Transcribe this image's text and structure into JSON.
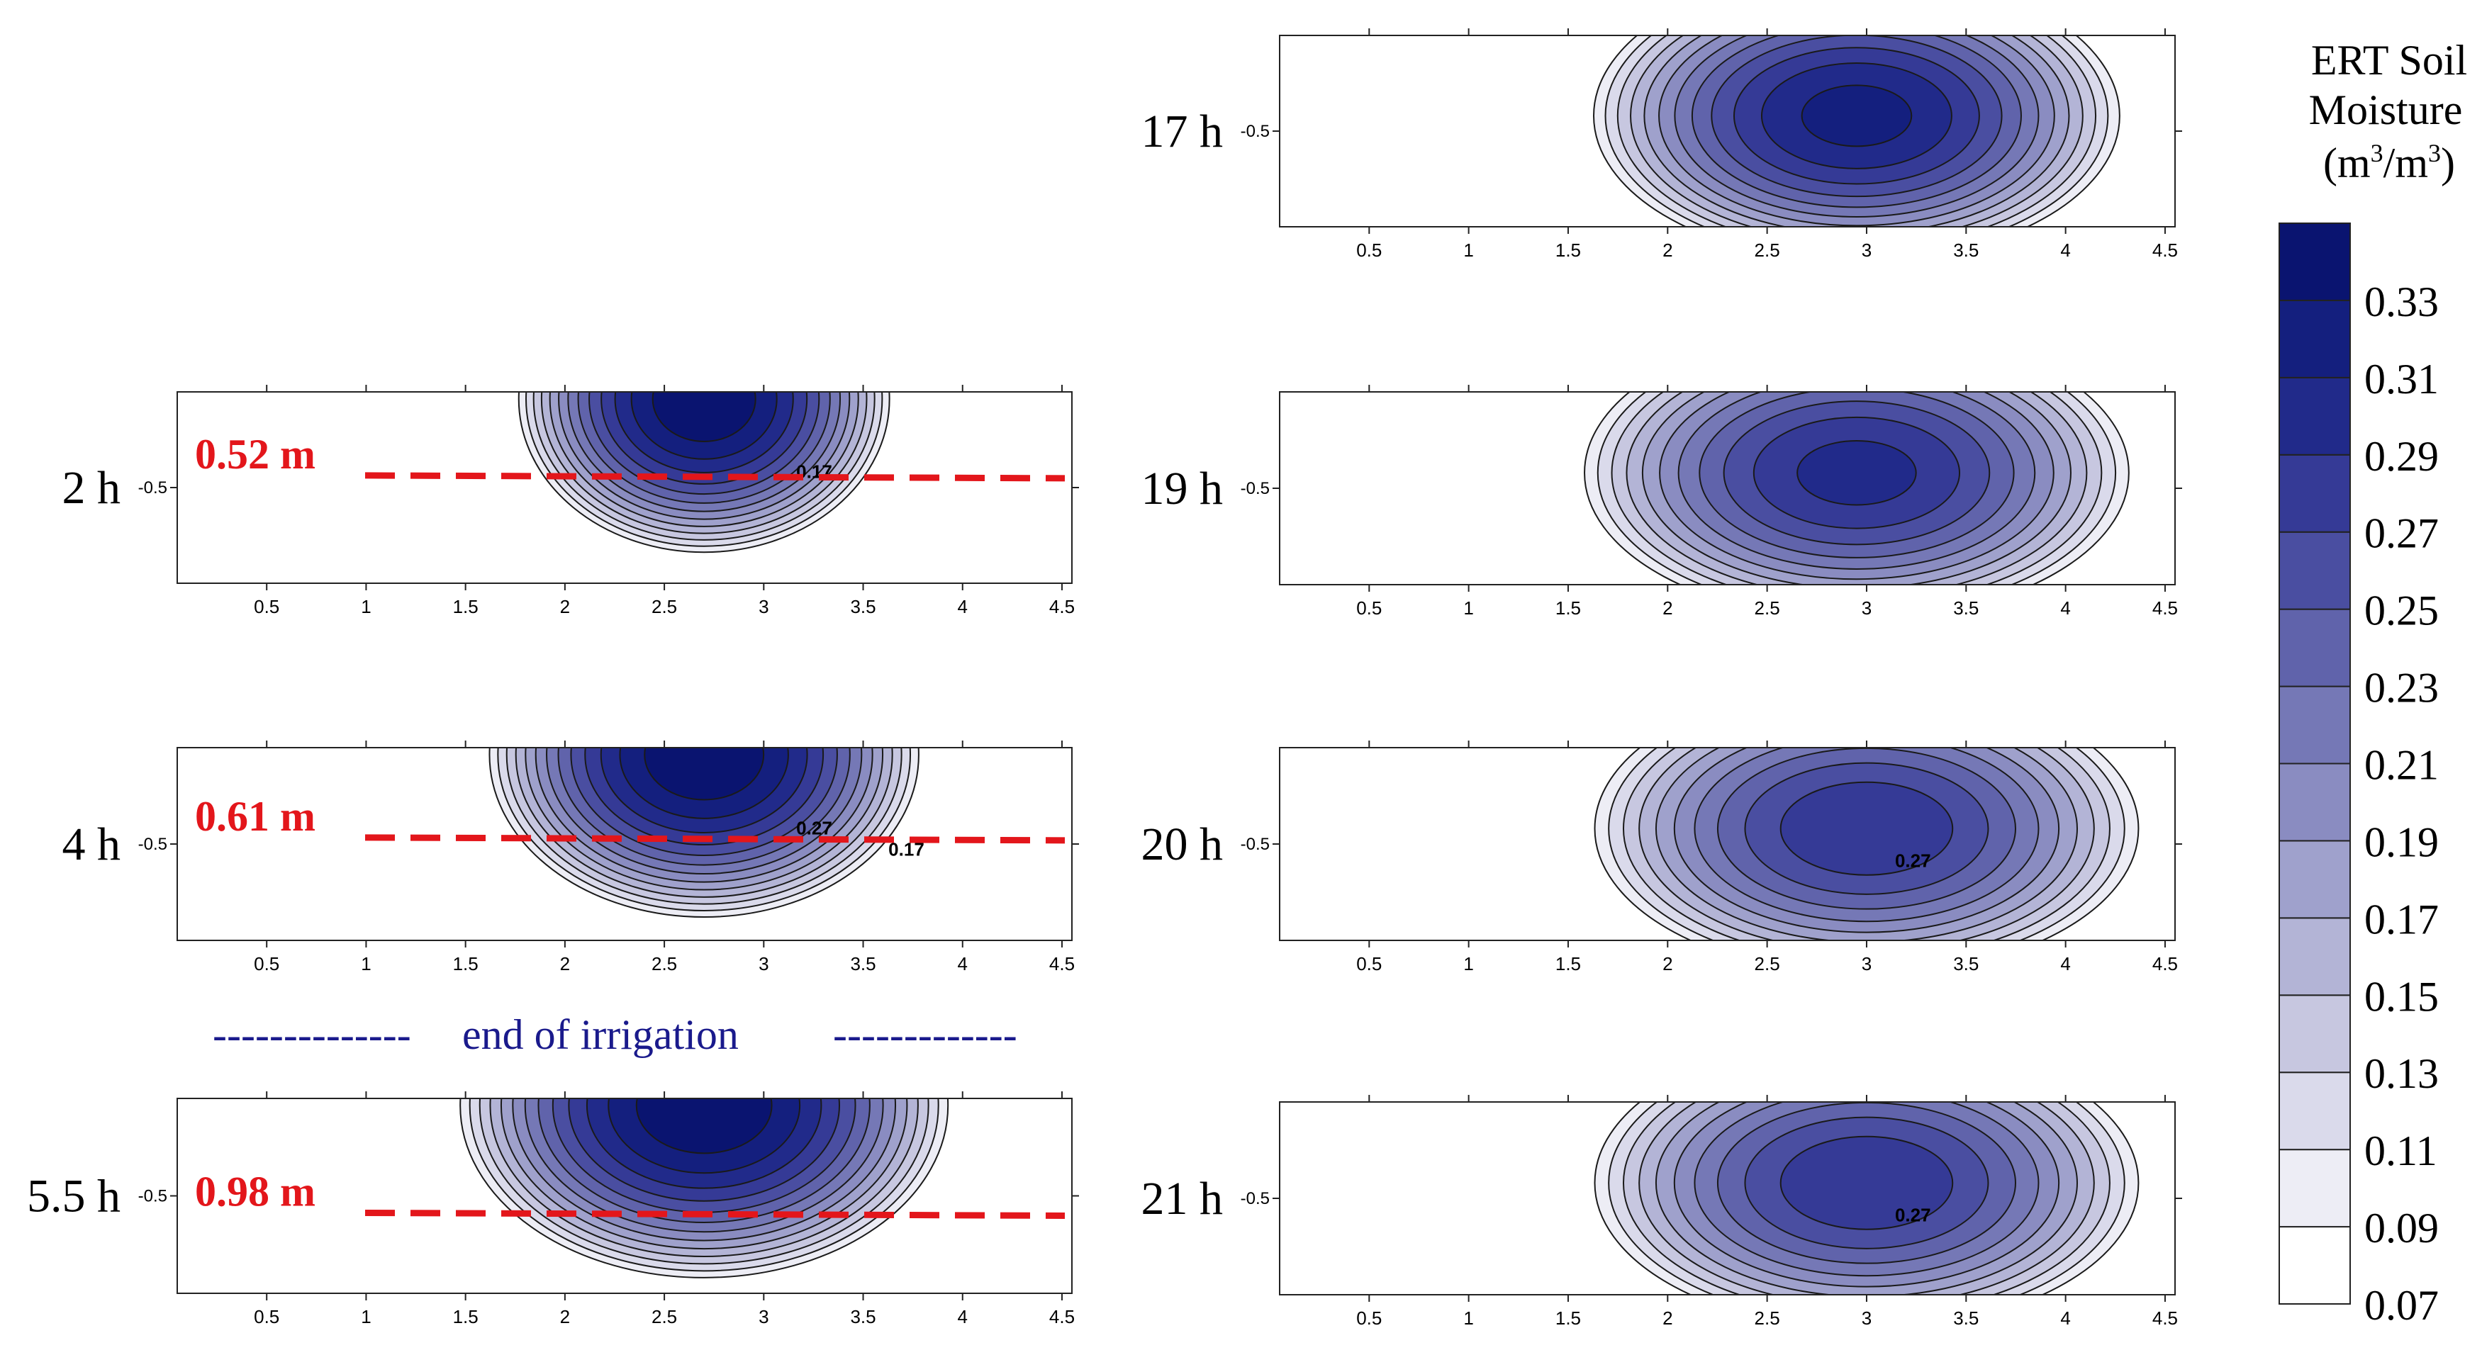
{
  "colorbar": {
    "title_lines": [
      "ERT Soil",
      "Moisture"
    ],
    "unit_base": "m",
    "unit_sup": "3",
    "unit_sep": "/",
    "unit_open": "(",
    "unit_close": ")",
    "levels": [
      "0.07",
      "0.09",
      "0.11",
      "0.13",
      "0.15",
      "0.17",
      "0.19",
      "0.21",
      "0.23",
      "0.25",
      "0.27",
      "0.29",
      "0.31",
      "0.33"
    ],
    "colors": [
      "#ffffff",
      "#ededf5",
      "#dadaeb",
      "#c7c7e0",
      "#b3b4d6",
      "#9fa1cc",
      "#8a8cc1",
      "#7578b6",
      "#6063ab",
      "#4a4ea1",
      "#353a96",
      "#212a8a",
      "#141f7e",
      "#0a1470"
    ]
  },
  "chart_data": [
    {
      "type": "heatmap",
      "title": "2 h",
      "depth_label": "0.52 m",
      "depth_m": 0.52,
      "ytick": "-0.5",
      "xticks": [
        "0.5",
        "1",
        "1.5",
        "2",
        "2.5",
        "3",
        "3.5",
        "4",
        "4.5"
      ],
      "xlim": [
        0.05,
        4.55
      ],
      "contour_label": "0.17",
      "wetting_center_x": 2.7,
      "peak_value": 0.35,
      "extent": 0.95
    },
    {
      "type": "heatmap",
      "title": "4 h",
      "depth_label": "0.61 m",
      "depth_m": 0.61,
      "ytick": "-0.5",
      "xticks": [
        "0.5",
        "1",
        "1.5",
        "2",
        "2.5",
        "3",
        "3.5",
        "4",
        "4.5"
      ],
      "xlim": [
        0.05,
        4.55
      ],
      "contour_label": "0.27",
      "contour_label_2": "0.17",
      "wetting_center_x": 2.7,
      "peak_value": 0.35,
      "extent": 1.1
    },
    {
      "type": "heatmap",
      "title": "5.5 h",
      "depth_label": "0.98 m",
      "depth_m": 0.98,
      "ytick": "-0.5",
      "xticks": [
        "0.5",
        "1",
        "1.5",
        "2",
        "2.5",
        "3",
        "3.5",
        "4",
        "4.5"
      ],
      "xlim": [
        0.05,
        4.55
      ],
      "wetting_center_x": 2.7,
      "peak_value": 0.35,
      "extent": 1.25
    },
    {
      "type": "heatmap",
      "title": "17 h",
      "ytick": "-0.5",
      "xticks": [
        "0.5",
        "1",
        "1.5",
        "2",
        "2.5",
        "3",
        "3.5",
        "4",
        "4.5"
      ],
      "xlim": [
        0.05,
        4.55
      ],
      "wetting_center_x": 2.95,
      "peak_value": 0.32,
      "extent": 1.35
    },
    {
      "type": "heatmap",
      "title": "19 h",
      "ytick": "-0.5",
      "xticks": [
        "0.5",
        "1",
        "1.5",
        "2",
        "2.5",
        "3",
        "3.5",
        "4",
        "4.5"
      ],
      "xlim": [
        0.05,
        4.55
      ],
      "wetting_center_x": 2.95,
      "peak_value": 0.3,
      "extent": 1.4
    },
    {
      "type": "heatmap",
      "title": "20 h",
      "ytick": "-0.5",
      "xticks": [
        "0.5",
        "1",
        "1.5",
        "2",
        "2.5",
        "3",
        "3.5",
        "4",
        "4.5"
      ],
      "xlim": [
        0.05,
        4.55
      ],
      "contour_label": "0.27",
      "wetting_center_x": 3.0,
      "peak_value": 0.29,
      "extent": 1.4
    },
    {
      "type": "heatmap",
      "title": "21 h",
      "ytick": "-0.5",
      "xticks": [
        "0.5",
        "1",
        "1.5",
        "2",
        "2.5",
        "3",
        "3.5",
        "4",
        "4.5"
      ],
      "xlim": [
        0.05,
        4.55
      ],
      "contour_label": "0.27",
      "wetting_center_x": 3.0,
      "peak_value": 0.29,
      "extent": 1.4
    }
  ],
  "annotation": {
    "end_text": "end of irrigation",
    "left_dashes": "--------------",
    "right_dashes": "-------------"
  }
}
